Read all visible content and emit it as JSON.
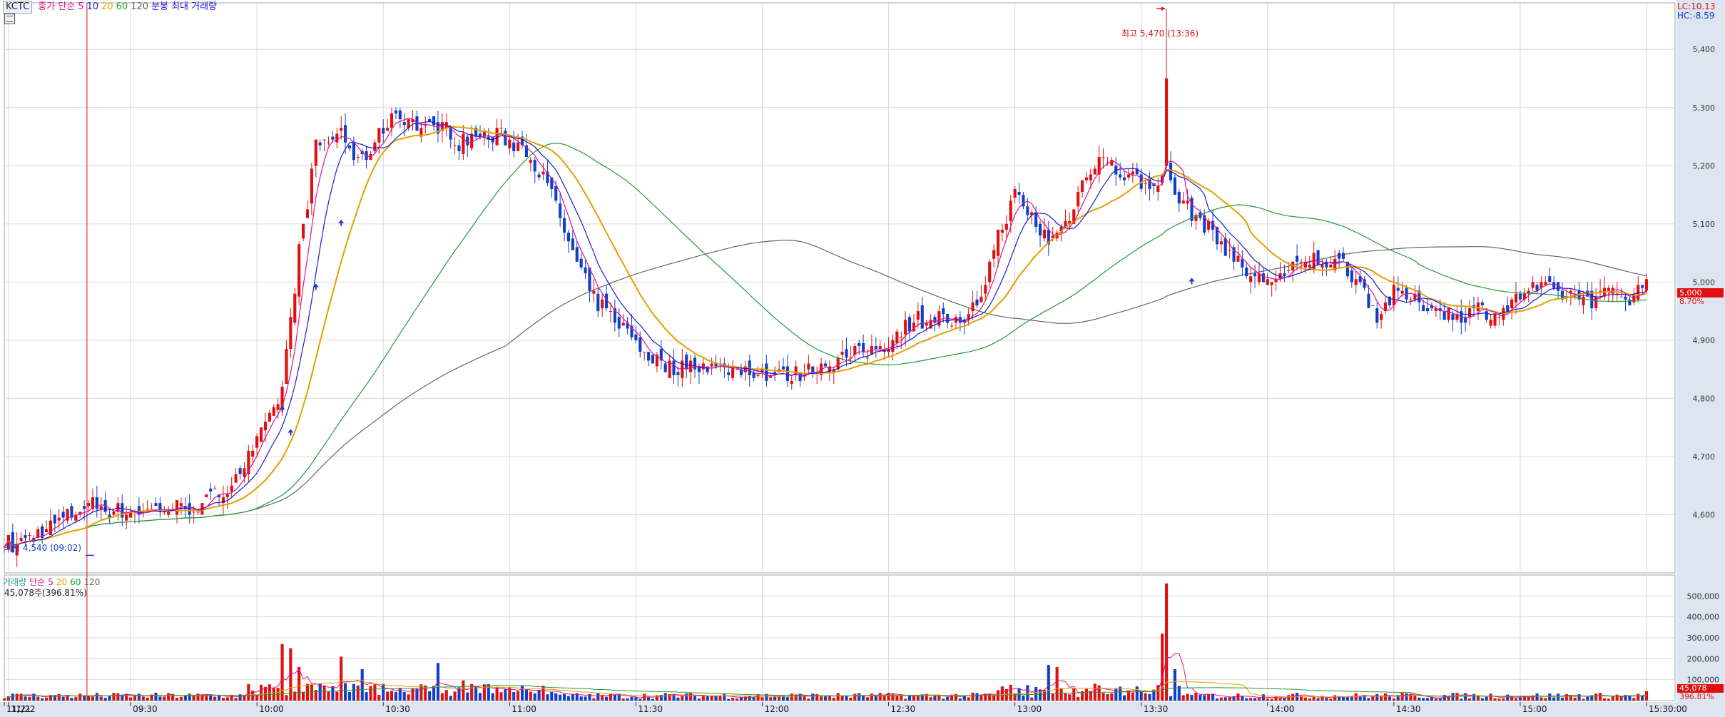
{
  "symbol": "KCTC",
  "price_legend": {
    "items": [
      {
        "text": "종가 단순",
        "color": "#e0118c"
      },
      {
        "text": "5",
        "color": "#e0118c"
      },
      {
        "text": "10",
        "color": "#1a1ad6"
      },
      {
        "text": "20",
        "color": "#e3a000"
      },
      {
        "text": "60",
        "color": "#1f9a36"
      },
      {
        "text": "120",
        "color": "#666666"
      },
      {
        "text": "분봉 최대 거래량",
        "color": "#1a1ad6"
      }
    ]
  },
  "volume_legend": {
    "items": [
      {
        "text": "거래량",
        "color": "#1f9a96"
      },
      {
        "text": "단순",
        "color": "#e0118c"
      },
      {
        "text": "5",
        "color": "#e0118c"
      },
      {
        "text": "20",
        "color": "#e3a000"
      },
      {
        "text": "60",
        "color": "#1f9a36"
      },
      {
        "text": "120",
        "color": "#666666"
      }
    ],
    "volume_text": "45,078주(396.81%)"
  },
  "lc_text": "LC:10.13",
  "hc_text": "HC:-8.59",
  "annotations": {
    "high": "최고 5,470 (13:36)",
    "low": "최저 4,540 (09:02)"
  },
  "current": {
    "price_label": "5,000",
    "pct_label": "8.70%",
    "vol_label": "45,078",
    "vol_pct_label": "396.81%"
  },
  "colors": {
    "up": "#e01010",
    "down": "#1040c8",
    "ma5": "#e0118c",
    "ma10": "#1a1ad6",
    "ma20": "#e3a000",
    "ma60": "#1f9a36",
    "ma120": "#666666"
  },
  "chart_data": {
    "type": "candlestick",
    "price_axis": {
      "ylim": [
        4500,
        5480
      ],
      "ticks": [
        4600,
        4700,
        4800,
        4900,
        5000,
        5100,
        5200,
        5300,
        5400
      ],
      "tick_labels": [
        "4,600",
        "4,700",
        "4,800",
        "4,900",
        "5,000",
        "5,100",
        "5,200",
        "5,300",
        "5,400"
      ]
    },
    "volume_axis": {
      "ylim": [
        0,
        600000
      ],
      "ticks": [
        100000,
        200000,
        300000,
        400000,
        500000
      ],
      "tick_labels": [
        "100,000",
        "200,000",
        "300,000",
        "400,000",
        "500,000"
      ]
    },
    "x_axis": {
      "labels": [
        {
          "text": "11/21",
          "t": 0
        },
        {
          "text": "11/22",
          "t": 1
        },
        {
          "text": "09:30",
          "t": 30
        },
        {
          "text": "10:00",
          "t": 60
        },
        {
          "text": "10:30",
          "t": 90
        },
        {
          "text": "11:00",
          "t": 120
        },
        {
          "text": "11:30",
          "t": 150
        },
        {
          "text": "12:00",
          "t": 180
        },
        {
          "text": "12:30",
          "t": 210
        },
        {
          "text": "13:00",
          "t": 240
        },
        {
          "text": "13:30",
          "t": 270
        },
        {
          "text": "14:00",
          "t": 300
        },
        {
          "text": "14:30",
          "t": 330
        },
        {
          "text": "15:00",
          "t": 360
        },
        {
          "text": "15:30:00",
          "t": 390
        }
      ]
    },
    "price_keypoints": [
      [
        0,
        4560
      ],
      [
        2,
        4545
      ],
      [
        10,
        4575
      ],
      [
        20,
        4620
      ],
      [
        28,
        4605
      ],
      [
        38,
        4610
      ],
      [
        46,
        4615
      ],
      [
        52,
        4640
      ],
      [
        58,
        4700
      ],
      [
        63,
        4760
      ],
      [
        66,
        4820
      ],
      [
        70,
        5050
      ],
      [
        74,
        5230
      ],
      [
        80,
        5260
      ],
      [
        84,
        5200
      ],
      [
        88,
        5240
      ],
      [
        92,
        5290
      ],
      [
        96,
        5280
      ],
      [
        100,
        5260
      ],
      [
        104,
        5270
      ],
      [
        108,
        5240
      ],
      [
        112,
        5250
      ],
      [
        118,
        5250
      ],
      [
        124,
        5230
      ],
      [
        130,
        5150
      ],
      [
        136,
        5030
      ],
      [
        140,
        4970
      ],
      [
        146,
        4930
      ],
      [
        152,
        4880
      ],
      [
        158,
        4850
      ],
      [
        164,
        4860
      ],
      [
        170,
        4850
      ],
      [
        176,
        4850
      ],
      [
        182,
        4840
      ],
      [
        188,
        4840
      ],
      [
        194,
        4860
      ],
      [
        200,
        4870
      ],
      [
        205,
        4880
      ],
      [
        210,
        4900
      ],
      [
        216,
        4935
      ],
      [
        222,
        4940
      ],
      [
        228,
        4920
      ],
      [
        232,
        4980
      ],
      [
        236,
        5080
      ],
      [
        240,
        5150
      ],
      [
        244,
        5110
      ],
      [
        248,
        5070
      ],
      [
        252,
        5100
      ],
      [
        256,
        5170
      ],
      [
        260,
        5220
      ],
      [
        264,
        5190
      ],
      [
        268,
        5180
      ],
      [
        272,
        5160
      ],
      [
        276,
        5200
      ],
      [
        278,
        5150
      ],
      [
        282,
        5120
      ],
      [
        286,
        5090
      ],
      [
        290,
        5060
      ],
      [
        294,
        5020
      ],
      [
        298,
        5005
      ],
      [
        304,
        5010
      ],
      [
        308,
        5030
      ],
      [
        312,
        5040
      ],
      [
        318,
        5030
      ],
      [
        322,
        5000
      ],
      [
        326,
        4940
      ],
      [
        330,
        4980
      ],
      [
        334,
        4970
      ],
      [
        338,
        4960
      ],
      [
        342,
        4950
      ],
      [
        346,
        4940
      ],
      [
        350,
        4955
      ],
      [
        354,
        4945
      ],
      [
        358,
        4960
      ],
      [
        362,
        4990
      ],
      [
        366,
        4985
      ],
      [
        370,
        4980
      ],
      [
        374,
        4975
      ],
      [
        378,
        4970
      ],
      [
        382,
        4985
      ],
      [
        386,
        4975
      ],
      [
        390,
        5000
      ]
    ],
    "series": [
      {
        "name": "5",
        "key": "ma5"
      },
      {
        "name": "10",
        "key": "ma10"
      },
      {
        "name": "20",
        "key": "ma20"
      },
      {
        "name": "60",
        "key": "ma60"
      },
      {
        "name": "120",
        "key": "ma120"
      }
    ],
    "volume_spikes": [
      {
        "t": 66,
        "v": 270000
      },
      {
        "t": 68,
        "v": 250000
      },
      {
        "t": 70,
        "v": 160000
      },
      {
        "t": 80,
        "v": 210000
      },
      {
        "t": 85,
        "v": 150000
      },
      {
        "t": 103,
        "v": 180000
      },
      {
        "t": 248,
        "v": 170000
      },
      {
        "t": 250,
        "v": 160000
      },
      {
        "t": 275,
        "v": 320000
      },
      {
        "t": 276,
        "v": 560000
      },
      {
        "t": 278,
        "v": 150000
      },
      {
        "t": 390,
        "v": 45078
      }
    ],
    "high": {
      "t": 276,
      "value": 5470
    },
    "low": {
      "t": 2,
      "value": 4540
    }
  }
}
